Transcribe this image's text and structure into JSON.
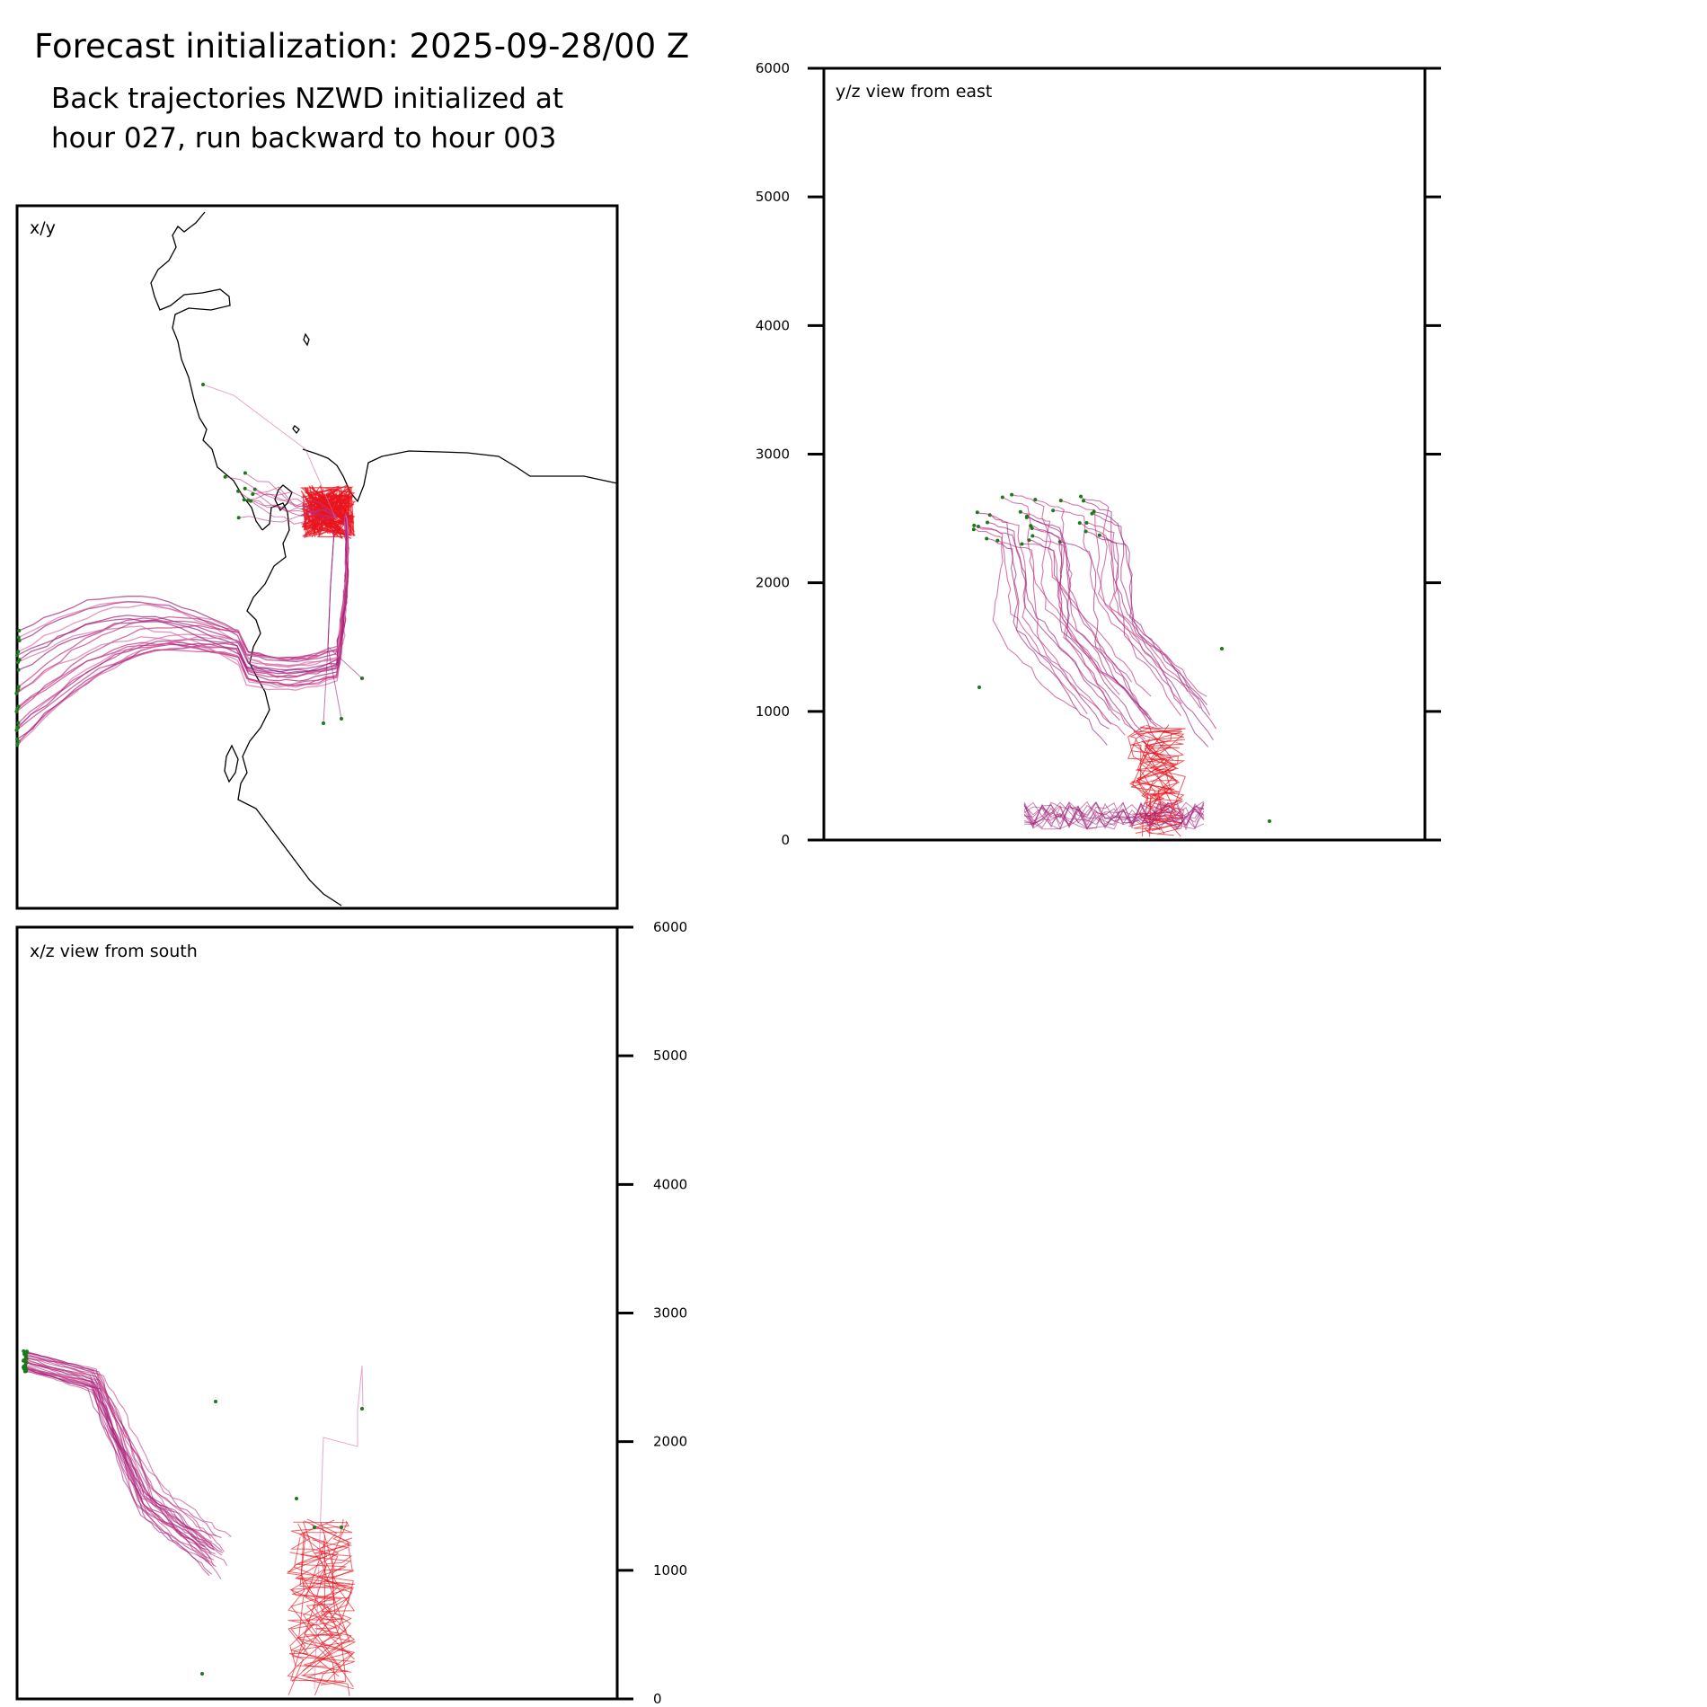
{
  "header": {
    "title": "Forecast initialization: 2025-09-28/00 Z",
    "subtitle_line1": "Back trajectories NZWD initialized at",
    "subtitle_line2": "hour 027, run backward to hour 003"
  },
  "colors": {
    "trajectory_primary": "#e8141e",
    "trajectory_secondary": "#a0207a",
    "start_marker": "#1a7a1a",
    "coastline": "#000000",
    "frame": "#000000"
  },
  "chart_data": [
    {
      "type": "line",
      "panel": "xy",
      "label": "x/y",
      "description_of_content": "map view with coastline and back-trajectory paths"
    },
    {
      "type": "line",
      "panel": "yz",
      "label": "y/z view from east",
      "ylabel": "",
      "ylim": [
        0,
        6000
      ],
      "yticks": [
        "0",
        "1000",
        "2000",
        "3000",
        "4000",
        "5000",
        "6000"
      ],
      "yaxis_side": "left"
    },
    {
      "type": "line",
      "panel": "xz",
      "label": "x/z view from south",
      "ylabel": "",
      "ylim": [
        0,
        6000
      ],
      "yticks": [
        "0",
        "1000",
        "2000",
        "3000",
        "4000",
        "5000",
        "6000"
      ],
      "yaxis_side": "right"
    }
  ]
}
